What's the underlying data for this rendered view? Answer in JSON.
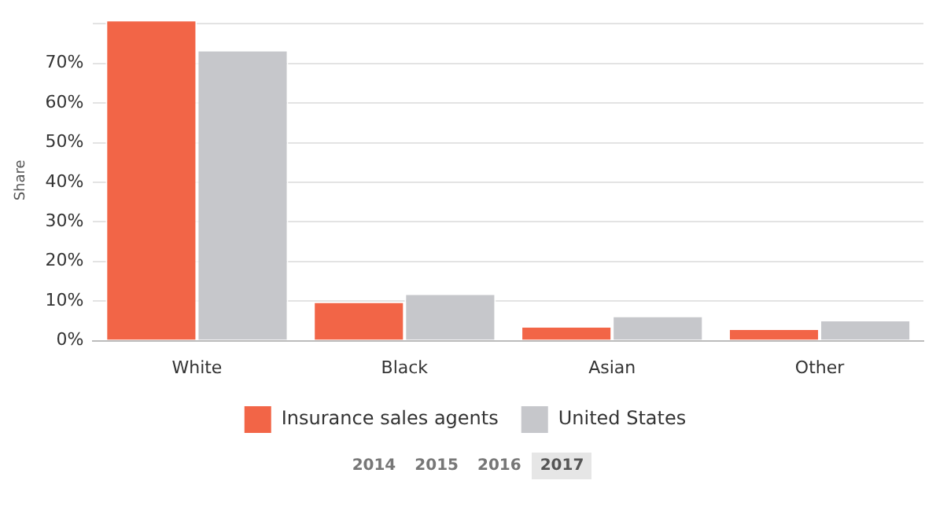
{
  "chart_data": {
    "type": "bar",
    "ylabel": "Share",
    "categories": [
      "White",
      "Black",
      "Asian",
      "Other"
    ],
    "series": [
      {
        "name": "Insurance sales agents",
        "color": "#f26547",
        "values": [
          81,
          9.9,
          3.7,
          3.1
        ]
      },
      {
        "name": "United States",
        "color": "#c6c7cb",
        "values": [
          73.4,
          11.9,
          6.3,
          5.3
        ]
      }
    ],
    "ylim": [
      0,
      81
    ],
    "yticks": [
      {
        "value": 0,
        "label": "0%"
      },
      {
        "value": 10,
        "label": "10%"
      },
      {
        "value": 20,
        "label": "20%"
      },
      {
        "value": 30,
        "label": "30%"
      },
      {
        "value": 40,
        "label": "40%"
      },
      {
        "value": 50,
        "label": "50%"
      },
      {
        "value": 60,
        "label": "60%"
      },
      {
        "value": 70,
        "label": "70%"
      },
      {
        "value": 80,
        "label": null
      }
    ],
    "grid": "y",
    "legend": "bottom",
    "annotations": [
      "2014",
      "2015",
      "2016",
      "2017"
    ]
  }
}
